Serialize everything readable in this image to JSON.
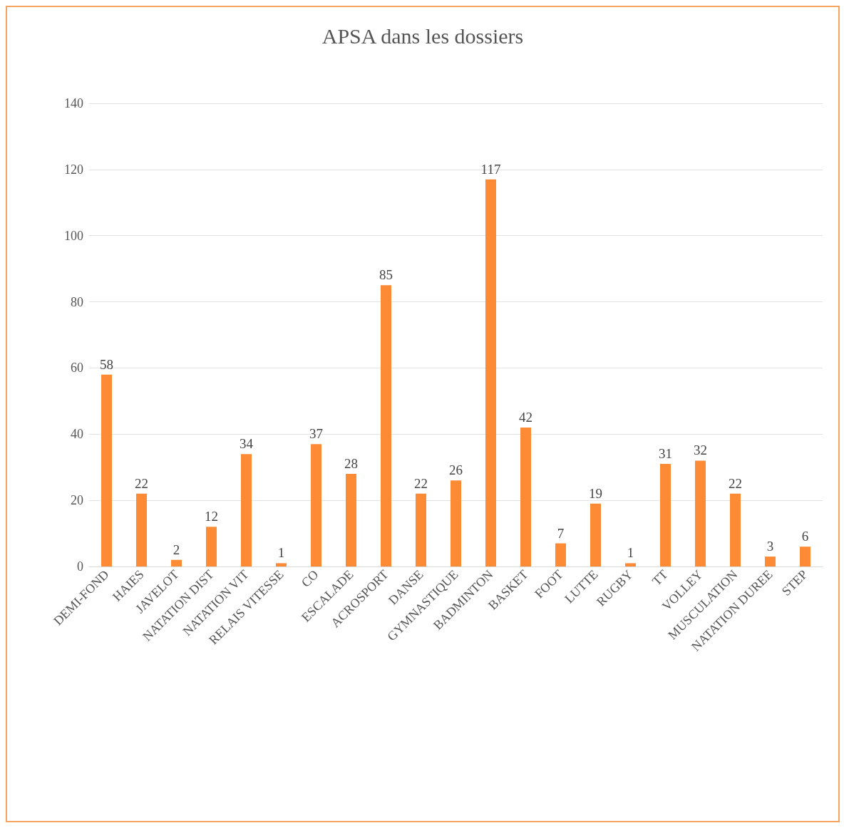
{
  "chart_data": {
    "type": "bar",
    "title": "APSA dans les dossiers",
    "categories": [
      "DEMI-FOND",
      "HAIES",
      "JAVELOT",
      "NATATION DIST",
      "NATATION VIT",
      "RELAIS VITESSE",
      "CO",
      "ESCALADE",
      "ACROSPORT",
      "DANSE",
      "GYMNASTIQUE",
      "BADMINTON",
      "BASKET",
      "FOOT",
      "LUTTE",
      "RUGBY",
      "TT",
      "VOLLEY",
      "MUSCULATION",
      "NATATION DUREE",
      "STEP"
    ],
    "values": [
      58,
      22,
      2,
      12,
      34,
      1,
      37,
      28,
      85,
      22,
      26,
      117,
      42,
      7,
      19,
      1,
      31,
      32,
      22,
      3,
      6
    ],
    "color": "#fd8b36",
    "ylim": [
      0,
      140
    ],
    "yticks": [
      0,
      20,
      40,
      60,
      80,
      100,
      120,
      140
    ],
    "grid": "y",
    "data_labels": true
  }
}
